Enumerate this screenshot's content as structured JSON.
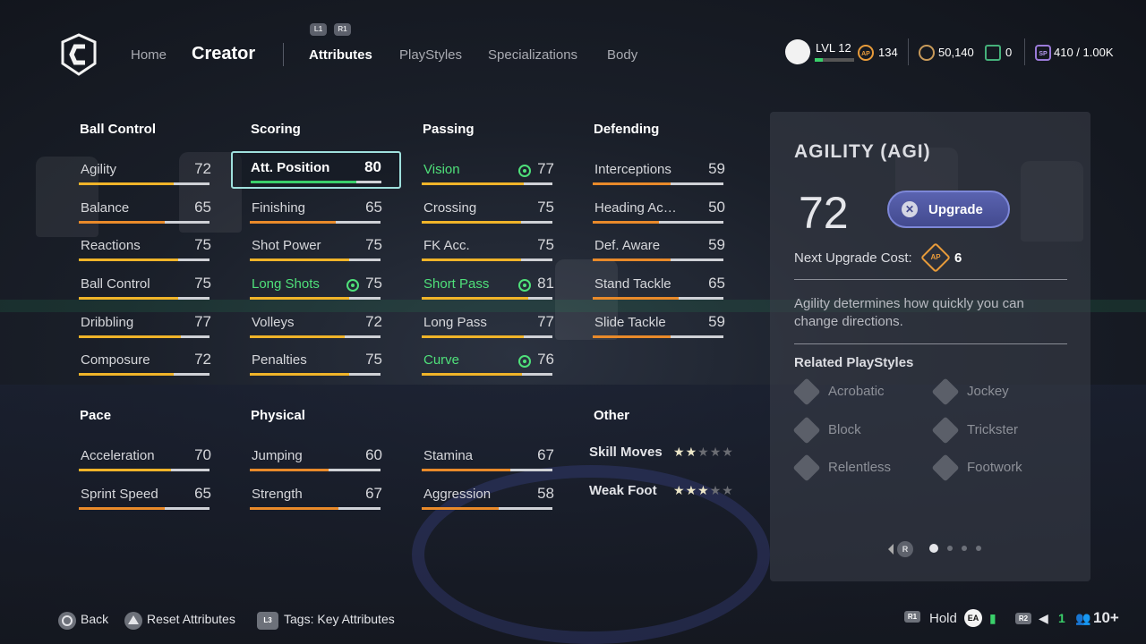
{
  "header": {
    "nav": {
      "home": "Home",
      "creator": "Creator"
    },
    "shoulder_left": "L1",
    "shoulder_right": "R1",
    "tabs": [
      "Attributes",
      "PlayStyles",
      "Specializations",
      "Body"
    ],
    "active_tab": "Attributes",
    "level_label": "LVL 12",
    "level_progress": 0.2,
    "ap_icon_label": "AP",
    "ap": "134",
    "coins": "50,140",
    "tokens": "0",
    "sp_icon_label": "SP",
    "sp": "410 / 1.00K"
  },
  "columns": {
    "ball_control": {
      "title": "Ball Control",
      "items": [
        {
          "name": "Agility",
          "value": "72"
        },
        {
          "name": "Balance",
          "value": "65"
        },
        {
          "name": "Reactions",
          "value": "75"
        },
        {
          "name": "Ball Control",
          "value": "75"
        },
        {
          "name": "Dribbling",
          "value": "77"
        },
        {
          "name": "Composure",
          "value": "72"
        }
      ]
    },
    "scoring": {
      "title": "Scoring",
      "items": [
        {
          "name": "Att. Position",
          "value": "80"
        },
        {
          "name": "Finishing",
          "value": "65"
        },
        {
          "name": "Shot Power",
          "value": "75"
        },
        {
          "name": "Long Shots",
          "value": "75"
        },
        {
          "name": "Volleys",
          "value": "72"
        },
        {
          "name": "Penalties",
          "value": "75"
        }
      ]
    },
    "passing": {
      "title": "Passing",
      "items": [
        {
          "name": "Vision",
          "value": "77"
        },
        {
          "name": "Crossing",
          "value": "75"
        },
        {
          "name": "FK Acc.",
          "value": "75"
        },
        {
          "name": "Short Pass",
          "value": "81"
        },
        {
          "name": "Long Pass",
          "value": "77"
        },
        {
          "name": "Curve",
          "value": "76"
        }
      ]
    },
    "defending": {
      "title": "Defending",
      "items": [
        {
          "name": "Interceptions",
          "value": "59"
        },
        {
          "name": "Heading Accuracy",
          "value": "50"
        },
        {
          "name": "Def. Aware",
          "value": "59"
        },
        {
          "name": "Stand Tackle",
          "value": "65"
        },
        {
          "name": "Slide Tackle",
          "value": "59"
        }
      ]
    },
    "pace": {
      "title": "Pace",
      "items": [
        {
          "name": "Acceleration",
          "value": "70"
        },
        {
          "name": "Sprint Speed",
          "value": "65"
        }
      ]
    },
    "physical": {
      "title": "Physical",
      "items": [
        {
          "name": "Jumping",
          "value": "60"
        },
        {
          "name": "Strength",
          "value": "67"
        },
        {
          "name": "Stamina",
          "value": "67"
        },
        {
          "name": "Aggression",
          "value": "58"
        }
      ]
    },
    "other": {
      "title": "Other",
      "skill_moves": {
        "label": "Skill Moves",
        "stars": 2,
        "max": 5
      },
      "weak_foot": {
        "label": "Weak Foot",
        "stars": 3,
        "max": 5
      }
    }
  },
  "panel": {
    "title": "AGILITY (AGI)",
    "value": "72",
    "upgrade_label": "Upgrade",
    "next_cost_label": "Next Upgrade Cost:",
    "cost_icon_label": "AP",
    "next_cost": "6",
    "description": "Agility determines how quickly you can change directions.",
    "related_title": "Related PlayStyles",
    "playstyles": [
      "Acrobatic",
      "Jockey",
      "Block",
      "Trickster",
      "Relentless",
      "Footwork"
    ],
    "page_button": "R",
    "page_count": 4,
    "page_index": 0
  },
  "footer": {
    "back": "Back",
    "reset": "Reset Attributes",
    "l3_label": "L3",
    "tags": "Tags: Key Attributes",
    "r1_label": "R1",
    "hold": "Hold",
    "ea_label": "EA",
    "r2_label": "R2",
    "voice_count": "1",
    "party": "10+"
  },
  "colors": {
    "accent_green": "#4fe07a",
    "bar_yellow": "#f0b429",
    "bar_orange": "#e98a2a",
    "upgrade": "#4a5199"
  }
}
